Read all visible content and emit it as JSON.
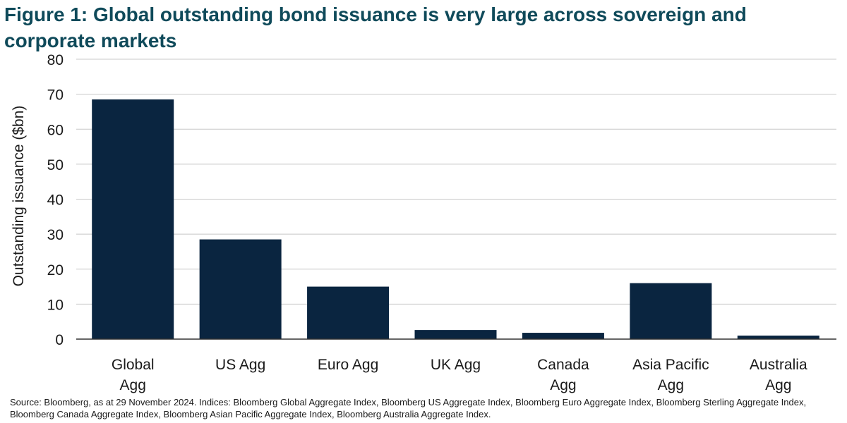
{
  "chart_data": {
    "type": "bar",
    "title": "Figure 1: Global outstanding bond issuance is very large across sovereign and corporate markets",
    "ylabel": "Outstanding issuance ($bn)",
    "xlabel": "",
    "categories": [
      [
        "Global",
        "Agg"
      ],
      [
        "US Agg"
      ],
      [
        "Euro Agg"
      ],
      [
        "UK Agg"
      ],
      [
        "Canada",
        "Agg"
      ],
      [
        "Asia Pacific",
        "Agg"
      ],
      [
        "Australia",
        "Agg"
      ]
    ],
    "values": [
      68.5,
      28.5,
      15.0,
      2.6,
      1.8,
      16.0,
      1.0
    ],
    "ylim": [
      0,
      80
    ],
    "yticks": [
      "0",
      "10",
      "20",
      "30",
      "40",
      "50",
      "60",
      "70",
      "80"
    ],
    "grid": true,
    "bar_color": "#0a2540",
    "grid_color": "#c8c8c8",
    "source": "Source: Bloomberg, as at 29 November 2024. Indices: Bloomberg Global Aggregate Index, Bloomberg US Aggregate Index, Bloomberg Euro Aggregate Index, Bloomberg Sterling Aggregate Index, Bloomberg Canada Aggregate Index, Bloomberg Asian Pacific Aggregate Index, Bloomberg Australia Aggregate Index."
  }
}
